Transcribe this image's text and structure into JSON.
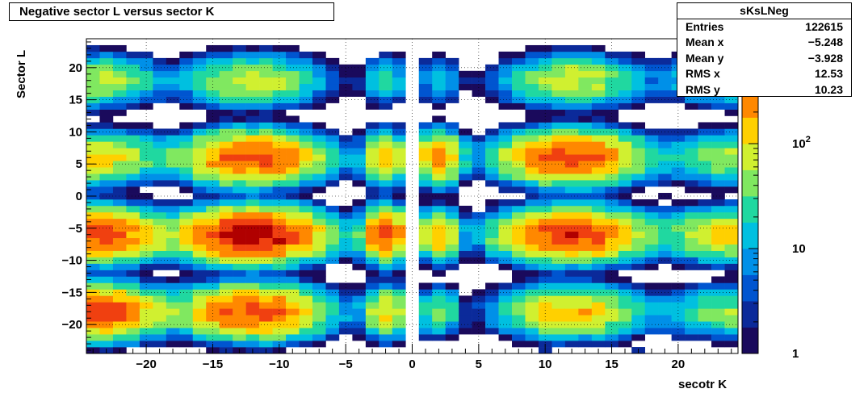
{
  "title": "Negative sector L versus sector K",
  "stats": {
    "name": "sKsLNeg",
    "rows": [
      {
        "label": "Entries",
        "value": "122615"
      },
      {
        "label": "Mean x",
        "value": "−5.248"
      },
      {
        "label": "Mean y",
        "value": "−3.928"
      },
      {
        "label": "RMS x",
        "value": "12.53"
      },
      {
        "label": "RMS y",
        "value": "10.23"
      }
    ]
  },
  "chart_data": {
    "type": "heatmap",
    "title": "Negative sector L versus sector K",
    "xlabel": "secotr K",
    "ylabel": "Sector L",
    "xlim": [
      -24.5,
      24.5
    ],
    "ylim": [
      -24.5,
      24.5
    ],
    "grid": true,
    "xticks": [
      {
        "v": -20,
        "label": "−20"
      },
      {
        "v": -15,
        "label": "−15"
      },
      {
        "v": -10,
        "label": "−10"
      },
      {
        "v": -5,
        "label": "−5"
      },
      {
        "v": 0,
        "label": "0"
      },
      {
        "v": 5,
        "label": "5"
      },
      {
        "v": 10,
        "label": "10"
      },
      {
        "v": 15,
        "label": "15"
      },
      {
        "v": 20,
        "label": "20"
      }
    ],
    "yticks": [
      {
        "v": 20,
        "label": "20"
      },
      {
        "v": 15,
        "label": "15"
      },
      {
        "v": 10,
        "label": "10"
      },
      {
        "v": 5,
        "label": "5"
      },
      {
        "v": 0,
        "label": "0"
      },
      {
        "v": -5,
        "label": "−5"
      },
      {
        "v": -10,
        "label": "−10"
      },
      {
        "v": -15,
        "label": "−15"
      },
      {
        "v": -20,
        "label": "−20"
      }
    ],
    "colorbar": {
      "scale": "log",
      "range": [
        1,
        1000
      ],
      "ticks": [
        {
          "v": 1,
          "label": "1"
        },
        {
          "v": 10,
          "label": "10"
        },
        {
          "v": 100,
          "label": "10",
          "sup": "2"
        }
      ]
    },
    "clusters": [
      {
        "x": -12,
        "y": 18,
        "peak": 80
      },
      {
        "x": -12,
        "y": 6,
        "peak": 400
      },
      {
        "x": -12,
        "y": -6,
        "peak": 800
      },
      {
        "x": -12,
        "y": -18,
        "peak": 400
      },
      {
        "x": 12,
        "y": 18,
        "peak": 80
      },
      {
        "x": 12,
        "y": 6,
        "peak": 400
      },
      {
        "x": 12,
        "y": -6,
        "peak": 500
      },
      {
        "x": 12,
        "y": -18,
        "peak": 150
      },
      {
        "x": -24,
        "y": 18,
        "peak": 60
      },
      {
        "x": -24,
        "y": 6,
        "peak": 120
      },
      {
        "x": -24,
        "y": -6,
        "peak": 450
      },
      {
        "x": -24,
        "y": -18,
        "peak": 450
      },
      {
        "x": 24,
        "y": 18,
        "peak": 40
      },
      {
        "x": 24,
        "y": 6,
        "peak": 60
      },
      {
        "x": 24,
        "y": -6,
        "peak": 130
      },
      {
        "x": 24,
        "y": -18,
        "peak": 50
      },
      {
        "x": -2,
        "y": 18,
        "peak": 25
      },
      {
        "x": -2,
        "y": 6,
        "peak": 150
      },
      {
        "x": -2,
        "y": -6,
        "peak": 450
      },
      {
        "x": -2,
        "y": -18,
        "peak": 120
      },
      {
        "x": 2,
        "y": 18,
        "peak": 15
      },
      {
        "x": 2,
        "y": 6,
        "peak": 250
      },
      {
        "x": 2,
        "y": -6,
        "peak": 150
      },
      {
        "x": 2,
        "y": -18,
        "peak": 40
      }
    ],
    "colors": {
      "palette": [
        "#1a0a5c",
        "#0b2a9a",
        "#0055d0",
        "#0090e8",
        "#00c0e0",
        "#20d8a0",
        "#80e860",
        "#d0f030",
        "#ffd000",
        "#ff8800",
        "#f04010",
        "#b00000"
      ]
    }
  }
}
